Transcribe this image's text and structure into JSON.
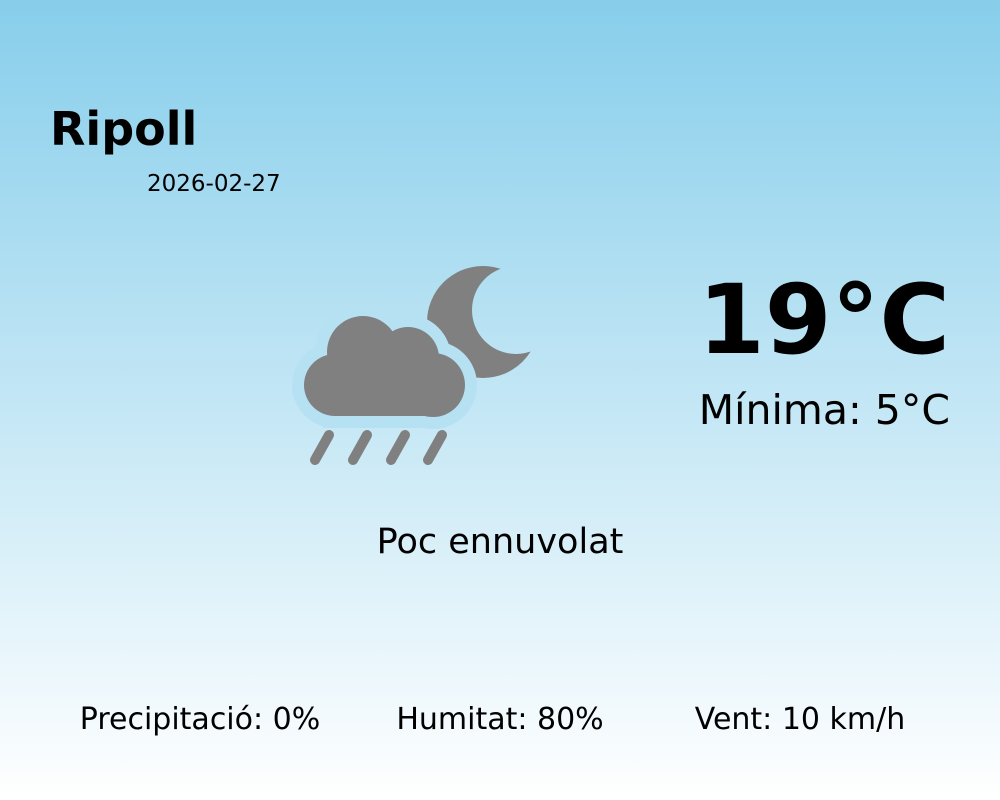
{
  "location": {
    "city": "Ripoll",
    "date": "2026-02-27"
  },
  "current": {
    "temperature": "19°C",
    "minimum": "Mínima: 5°C",
    "condition": "Poc ennuvolat",
    "icon": "cloud-rain-moon-icon",
    "icon_color": "#808080"
  },
  "stats": [
    {
      "label": "Precipitació: 0%"
    },
    {
      "label": "Humitat: 80%"
    },
    {
      "label": "Vent: 10 km/h"
    }
  ],
  "colors": {
    "background_top": "#87ceeb",
    "background_bottom": "#ffffff"
  }
}
